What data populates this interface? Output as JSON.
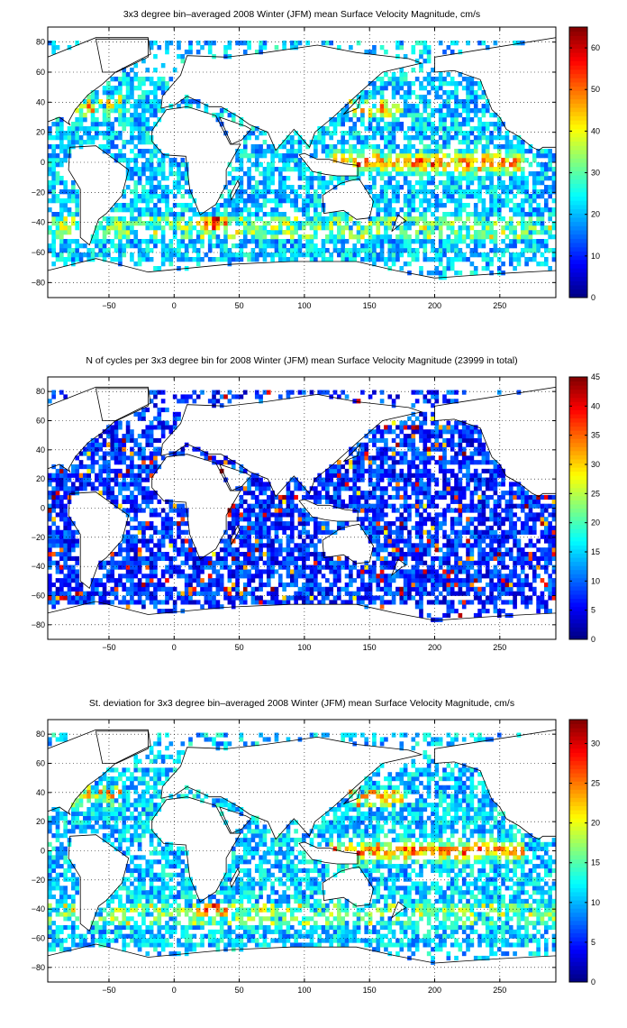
{
  "chart_data": [
    {
      "type": "heatmap",
      "title": "3x3 degree bin–averaged 2008 Winter (JFM) mean Surface Velocity Magnitude, cm/s",
      "xlabel": "",
      "ylabel": "",
      "xlim": [
        -97,
        293
      ],
      "ylim": [
        -90,
        90
      ],
      "x_ticks": [
        -50,
        0,
        50,
        100,
        150,
        200,
        250
      ],
      "y_ticks": [
        80,
        60,
        40,
        20,
        0,
        -20,
        -40,
        -60,
        -80
      ],
      "grid": true,
      "colormap": "jet",
      "colorbar": {
        "range": [
          0,
          65
        ],
        "ticks": [
          0,
          10,
          20,
          30,
          40,
          50,
          60
        ],
        "placement": "right"
      },
      "bin_size_deg": 3
    },
    {
      "type": "heatmap",
      "title": "N of cycles per 3x3 degree bin for 2008 Winter (JFM) mean Surface Velocity Magnitude (23999 in total)",
      "xlabel": "",
      "ylabel": "",
      "xlim": [
        -97,
        293
      ],
      "ylim": [
        -90,
        90
      ],
      "x_ticks": [
        -50,
        0,
        50,
        100,
        150,
        200,
        250
      ],
      "y_ticks": [
        80,
        60,
        40,
        20,
        0,
        -20,
        -40,
        -60,
        -80
      ],
      "grid": true,
      "colormap": "jet",
      "colorbar": {
        "range": [
          0,
          45
        ],
        "ticks": [
          0,
          5,
          10,
          15,
          20,
          25,
          30,
          35,
          40,
          45
        ],
        "placement": "right"
      },
      "bin_size_deg": 3
    },
    {
      "type": "heatmap",
      "title": "St. deviation for 3x3 degree bin–averaged 2008 Winter (JFM) mean Surface Velocity Magnitude, cm/s",
      "xlabel": "",
      "ylabel": "",
      "xlim": [
        -97,
        293
      ],
      "ylim": [
        -90,
        90
      ],
      "x_ticks": [
        -50,
        0,
        50,
        100,
        150,
        200,
        250
      ],
      "y_ticks": [
        80,
        60,
        40,
        20,
        0,
        -20,
        -40,
        -60,
        -80
      ],
      "grid": true,
      "colormap": "jet",
      "colorbar": {
        "range": [
          0,
          33
        ],
        "ticks": [
          0,
          5,
          10,
          15,
          20,
          25,
          30
        ],
        "placement": "right"
      },
      "bin_size_deg": 3
    }
  ]
}
